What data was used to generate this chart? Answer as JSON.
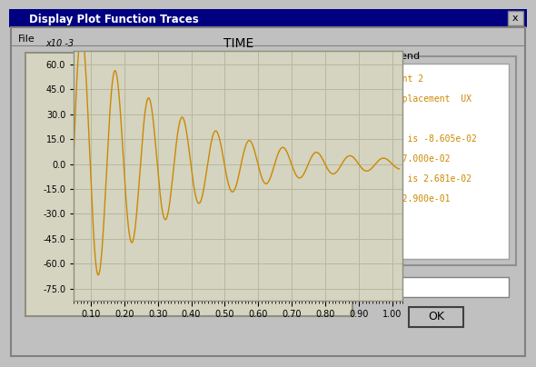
{
  "title": "TIME",
  "ylabel_scale": "x10 -3",
  "yticks": [
    60.0,
    45.0,
    30.0,
    15.0,
    0.0,
    -15.0,
    -30.0,
    -45.0,
    -60.0,
    -75.0
  ],
  "ylim": [
    -82,
    68
  ],
  "xlim": [
    0.05,
    1.03
  ],
  "xticks": [
    0.1,
    0.2,
    0.3,
    0.4,
    0.5,
    0.6,
    0.7,
    0.8,
    0.9,
    1.0
  ],
  "line_color": "#CC8800",
  "plot_bg": "#D4D4C0",
  "grid_color": "#B8B8A0",
  "legend_color": "#CC8800",
  "right_label": "Joint2",
  "window_title": "Display Plot Function Traces",
  "ok_button": "OK",
  "win_bg": "#C0C0C0",
  "title_bar_color": "#000080",
  "legend_lines": [
    "Joint 2",
    "Displacement  UX",
    "",
    "Min is -8.605e-02",
    "at 7.000e-02",
    "Max is 2.681e-02",
    "at 2.900e-01"
  ]
}
